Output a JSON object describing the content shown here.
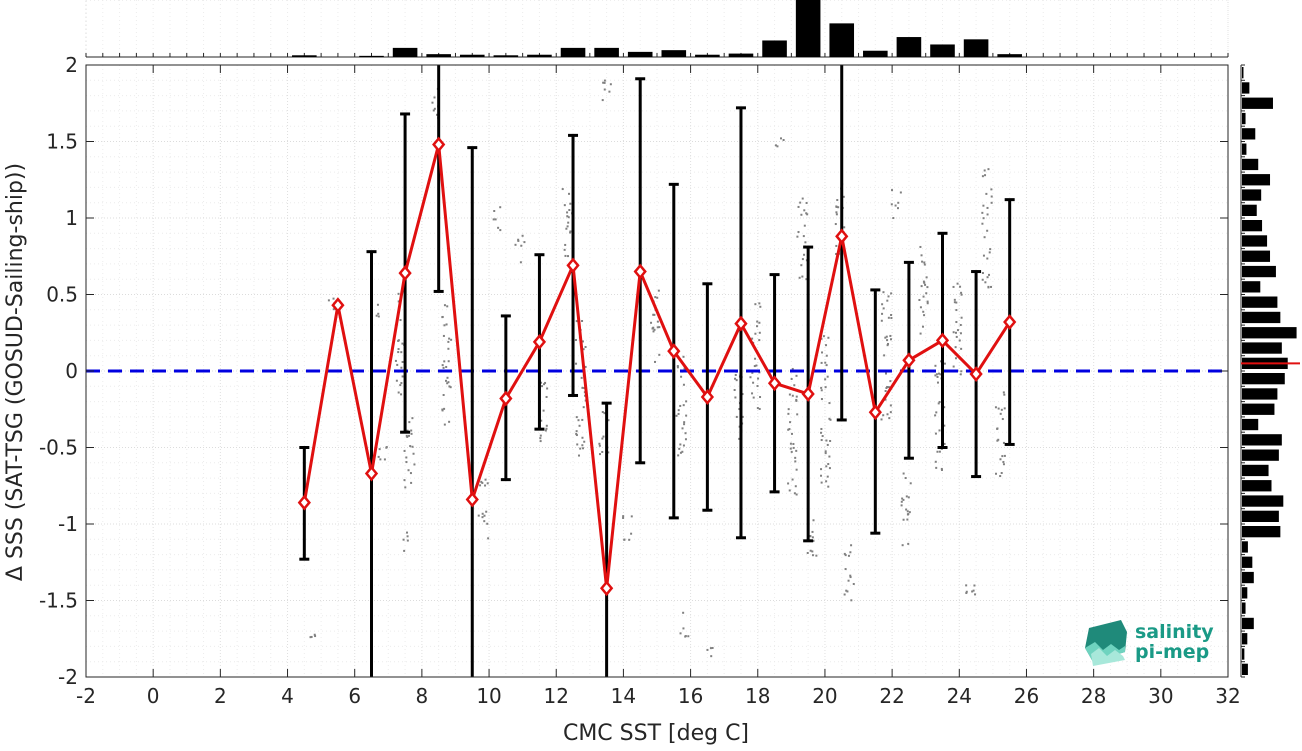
{
  "chart_data": {
    "type": "line",
    "title": "",
    "xlabel": "CMC SST [deg C]",
    "ylabel": "Δ SSS (SAT-TSG (GOSUD-Sailing-ship))",
    "xlim": [
      -2,
      32
    ],
    "ylim": [
      -2,
      2
    ],
    "xticks": [
      -2,
      0,
      2,
      4,
      6,
      8,
      10,
      12,
      14,
      16,
      18,
      20,
      22,
      24,
      26,
      28,
      30,
      32
    ],
    "yticks": [
      -2,
      -1.5,
      -1,
      -0.5,
      0,
      0.5,
      1,
      1.5,
      2
    ],
    "ytick_labels": [
      "-2",
      "-1.5",
      "-1",
      "-0.5",
      "0",
      "0.5",
      "1",
      "1.5",
      "2"
    ],
    "grid": true,
    "reference_line": {
      "y": 0,
      "style": "dashed",
      "color": "#0000e0"
    },
    "series": [
      {
        "style": "line-with-diamond-markers",
        "color": "#e01010",
        "x": [
          4.5,
          5.5,
          6.5,
          7.5,
          8.5,
          9.5,
          10.5,
          11.5,
          12.5,
          13.5,
          14.5,
          15.5,
          16.5,
          17.5,
          18.5,
          19.5,
          20.5,
          21.5,
          22.5,
          23.5,
          24.5,
          25.5
        ],
        "y": [
          -0.86,
          0.43,
          -0.67,
          0.64,
          1.48,
          -0.84,
          -0.18,
          0.19,
          0.69,
          -1.42,
          0.65,
          0.13,
          -0.17,
          0.31,
          -0.08,
          -0.15,
          0.88,
          -0.27,
          0.07,
          0.2,
          -0.02,
          0.32
        ],
        "error_low": [
          -1.23,
          null,
          -2.0,
          -0.4,
          0.52,
          -2.0,
          -0.71,
          -0.38,
          -0.16,
          -2.0,
          -0.6,
          -0.96,
          -0.91,
          -1.09,
          -0.79,
          -1.11,
          -0.32,
          -1.06,
          -0.57,
          -0.5,
          -0.69,
          -0.48
        ],
        "error_high": [
          -0.5,
          null,
          0.78,
          1.68,
          2.0,
          1.46,
          0.36,
          0.76,
          1.54,
          -0.21,
          1.91,
          1.22,
          0.57,
          1.72,
          0.63,
          0.81,
          2.0,
          0.53,
          0.71,
          0.9,
          0.65,
          1.12
        ]
      }
    ],
    "scatter_color": "#808080",
    "scatter_clusters": [
      [
        5.3,
        0.43,
        0.05
      ],
      [
        6.6,
        0.4,
        0.06
      ],
      [
        6.8,
        -0.55,
        0.08
      ],
      [
        7.3,
        0.2,
        0.35
      ],
      [
        7.6,
        -0.6,
        0.3
      ],
      [
        7.5,
        -1.1,
        0.07
      ],
      [
        8.4,
        1.75,
        0.12
      ],
      [
        8.7,
        0.05,
        0.4
      ],
      [
        9.8,
        -0.9,
        0.2
      ],
      [
        10.9,
        0.8,
        0.1
      ],
      [
        11.6,
        -0.25,
        0.22
      ],
      [
        12.3,
        0.95,
        0.25
      ],
      [
        12.7,
        -0.1,
        0.45
      ],
      [
        13.5,
        1.85,
        0.1
      ],
      [
        13.4,
        -0.4,
        0.15
      ],
      [
        14.9,
        0.3,
        0.25
      ],
      [
        15.7,
        -0.2,
        0.35
      ],
      [
        15.8,
        -1.65,
        0.08
      ],
      [
        16.6,
        -1.85,
        0.06
      ],
      [
        17.4,
        -0.2,
        0.25
      ],
      [
        17.9,
        0.1,
        0.35
      ],
      [
        18.6,
        1.5,
        0.06
      ],
      [
        19.0,
        -0.4,
        0.45
      ],
      [
        19.3,
        0.9,
        0.3
      ],
      [
        19.6,
        -1.1,
        0.15
      ],
      [
        20.0,
        -0.2,
        0.55
      ],
      [
        20.4,
        1.0,
        0.25
      ],
      [
        20.7,
        -1.3,
        0.2
      ],
      [
        21.8,
        0.1,
        0.45
      ],
      [
        22.4,
        -0.9,
        0.25
      ],
      [
        22.9,
        0.55,
        0.3
      ],
      [
        23.4,
        -0.3,
        0.4
      ],
      [
        23.9,
        0.3,
        0.35
      ],
      [
        24.3,
        -1.4,
        0.1
      ],
      [
        24.8,
        0.95,
        0.4
      ],
      [
        25.2,
        -0.4,
        0.3
      ],
      [
        14.1,
        -1.0,
        0.1
      ],
      [
        22.1,
        1.1,
        0.1
      ],
      [
        4.8,
        -1.72,
        0.02
      ],
      [
        10.2,
        1.0,
        0.08
      ]
    ],
    "top_histogram": {
      "bin_width": 1,
      "x_centers": [
        4.5,
        6.5,
        7.5,
        8.5,
        9.5,
        10.5,
        11.5,
        12.5,
        13.5,
        14.5,
        15.5,
        16.5,
        17.5,
        18.5,
        19.5,
        20.5,
        21.5,
        22.5,
        23.5,
        24.5,
        25.5
      ],
      "heights": [
        0.03,
        0.02,
        0.16,
        0.05,
        0.04,
        0.03,
        0.04,
        0.16,
        0.16,
        0.09,
        0.12,
        0.04,
        0.06,
        0.29,
        1.0,
        0.59,
        0.11,
        0.35,
        0.22,
        0.31,
        0.05
      ]
    },
    "right_histogram": {
      "bin_width": 0.1,
      "y_centers": [
        1.95,
        1.85,
        1.75,
        1.65,
        1.55,
        1.45,
        1.35,
        1.25,
        1.15,
        1.05,
        0.95,
        0.85,
        0.75,
        0.65,
        0.55,
        0.45,
        0.35,
        0.25,
        0.15,
        0.05,
        -0.05,
        -0.15,
        -0.25,
        -0.35,
        -0.45,
        -0.55,
        -0.65,
        -0.75,
        -0.85,
        -0.95,
        -1.05,
        -1.15,
        -1.25,
        -1.35,
        -1.45,
        -1.55,
        -1.65,
        -1.75,
        -1.85,
        -1.95
      ],
      "heights": [
        0.05,
        0.25,
        1.05,
        0.12,
        0.45,
        0.15,
        0.55,
        0.95,
        0.65,
        0.5,
        0.68,
        0.85,
        0.95,
        1.15,
        0.62,
        1.2,
        1.3,
        1.85,
        1.35,
        1.55,
        1.45,
        1.2,
        1.1,
        0.55,
        1.35,
        1.25,
        0.9,
        1.0,
        1.4,
        1.25,
        1.3,
        0.2,
        0.35,
        0.4,
        0.18,
        0.12,
        0.4,
        0.18,
        0.08,
        0.2
      ],
      "median_line_y": 0.05,
      "median_line_color": "#e01010"
    }
  },
  "logo": {
    "line1": "salinity",
    "line2": "pi-mep",
    "color": "#1a9a86"
  }
}
